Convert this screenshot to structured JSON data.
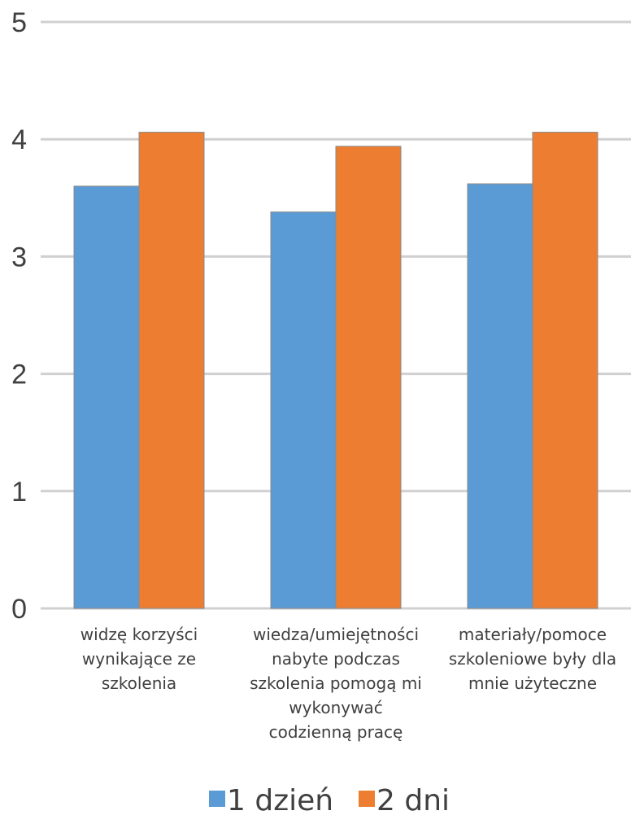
{
  "chart_data": {
    "type": "bar",
    "categories": [
      [
        "widzę korzyści",
        "wynikające ze",
        "szkolenia"
      ],
      [
        "wiedza/umiejętności",
        "nabyte podczas",
        "szkolenia pomogą mi",
        "wykonywać",
        "codzienną pracę"
      ],
      [
        "materiały/pomoce",
        "szkoleniowe były dla",
        "mnie użyteczne"
      ]
    ],
    "series": [
      {
        "name": "1 dzień",
        "values": [
          3.6,
          3.38,
          3.62
        ],
        "color": "#5b9bd5"
      },
      {
        "name": "2 dni",
        "values": [
          4.06,
          3.94,
          4.06
        ],
        "color": "#ed7d31"
      }
    ],
    "y_ticks": [
      "0",
      "1",
      "2",
      "3",
      "4",
      "5"
    ],
    "ylim": [
      0,
      5
    ],
    "grid": true,
    "legend_position": "bottom",
    "title": "",
    "xlabel": "",
    "ylabel": ""
  }
}
